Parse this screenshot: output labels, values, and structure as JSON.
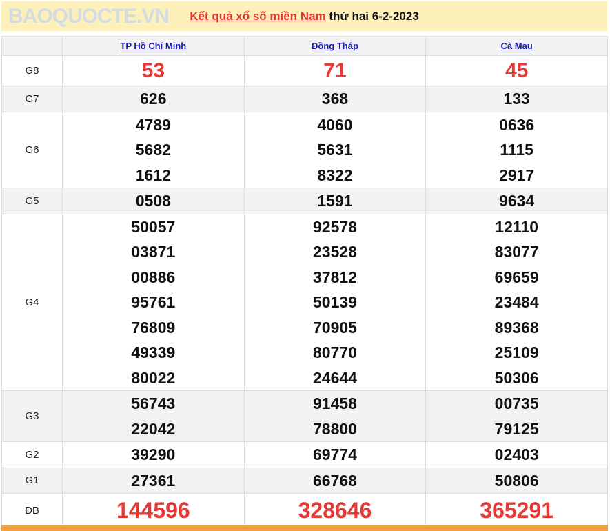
{
  "title": {
    "link": "Kết quả xổ số miền Nam",
    "rest": " thứ hai 6-2-2023"
  },
  "provinces": [
    "TP Hồ Chí Minh",
    "Đồng Tháp",
    "Cà Mau"
  ],
  "prizes": [
    {
      "label": "G8",
      "values": [
        [
          "53"
        ],
        [
          "71"
        ],
        [
          "45"
        ]
      ]
    },
    {
      "label": "G7",
      "values": [
        [
          "626"
        ],
        [
          "368"
        ],
        [
          "133"
        ]
      ]
    },
    {
      "label": "G6",
      "values": [
        [
          "4789",
          "5682",
          "1612"
        ],
        [
          "4060",
          "5631",
          "8322"
        ],
        [
          "0636",
          "1115",
          "2917"
        ]
      ]
    },
    {
      "label": "G5",
      "values": [
        [
          "0508"
        ],
        [
          "1591"
        ],
        [
          "9634"
        ]
      ]
    },
    {
      "label": "G4",
      "values": [
        [
          "50057",
          "03871",
          "00886",
          "95761",
          "76809",
          "49339",
          "80022"
        ],
        [
          "92578",
          "23528",
          "37812",
          "50139",
          "70905",
          "80770",
          "24644"
        ],
        [
          "12110",
          "83077",
          "69659",
          "23484",
          "89368",
          "25109",
          "50306"
        ]
      ]
    },
    {
      "label": "G3",
      "values": [
        [
          "56743",
          "22042"
        ],
        [
          "91458",
          "78800"
        ],
        [
          "00735",
          "79125"
        ]
      ]
    },
    {
      "label": "G2",
      "values": [
        [
          "39290"
        ],
        [
          "69774"
        ],
        [
          "02403"
        ]
      ]
    },
    {
      "label": "G1",
      "values": [
        [
          "27361"
        ],
        [
          "66768"
        ],
        [
          "50806"
        ]
      ]
    },
    {
      "label": "ĐB",
      "values": [
        [
          "144596"
        ],
        [
          "328646"
        ],
        [
          "365291"
        ]
      ]
    }
  ],
  "watermark": "BAOQUOCTE.VN",
  "colors": {
    "header_bg": "#fdf0bb",
    "accent_red": "#e53935",
    "link": "#1a1aa6",
    "footer_bar": "#f2a040"
  }
}
